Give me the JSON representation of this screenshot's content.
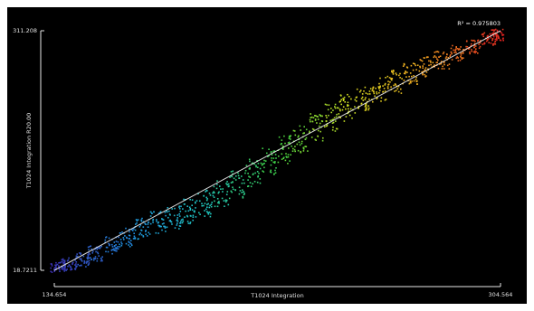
{
  "chart_data": {
    "type": "scatter",
    "title": "",
    "xlabel": "T1024 Integration",
    "ylabel": "T1024 Integration R20.00",
    "xlim": [
      134.654,
      304.564
    ],
    "ylim": [
      18.7211,
      311.208
    ],
    "x_tick_labels": [
      "134.654",
      "304.564"
    ],
    "y_tick_labels": [
      "18.7211",
      "311.208"
    ],
    "grid": false,
    "background": "#000000",
    "colormap": [
      "#3b2fb0",
      "#1f8fe0",
      "#20c8c0",
      "#40d040",
      "#d8e020",
      "#f0a020",
      "#e02020"
    ],
    "fit_line": {
      "label": "R² = 0.975803",
      "color": "#ffffff",
      "x": [
        134.654,
        304.564
      ],
      "y": [
        18.7211,
        311.208
      ]
    },
    "series": [
      {
        "values_note_x": "x",
        "x": [
          136,
          140,
          145,
          150,
          156,
          162,
          168,
          174,
          180,
          186,
          192,
          198,
          204,
          210,
          216,
          222,
          228,
          234,
          240,
          246,
          252,
          258,
          264,
          270,
          276,
          282,
          288,
          294,
          300,
          303
        ],
        "y": [
          24,
          27,
          32,
          40,
          50,
          60,
          70,
          78,
          84,
          92,
          101,
          112,
          124,
          138,
          152,
          167,
          180,
          194,
          206,
          218,
          229,
          240,
          250,
          259,
          268,
          276,
          284,
          292,
          302,
          307
        ]
      }
    ]
  }
}
